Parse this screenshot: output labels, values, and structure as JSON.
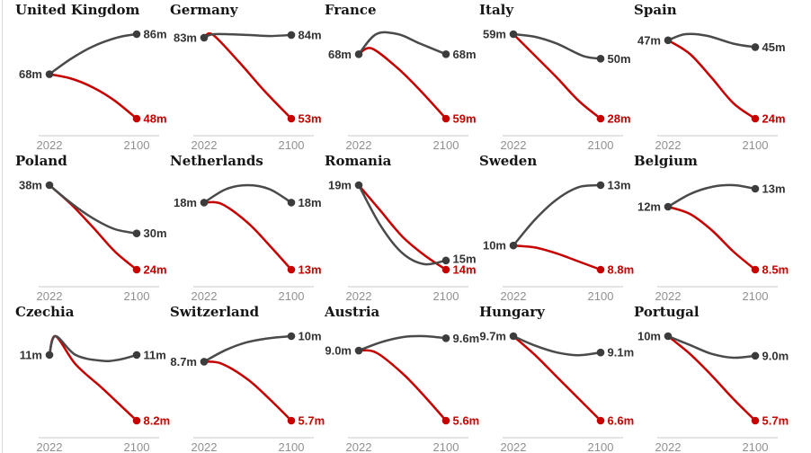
{
  "page": {
    "background": "#ffffff",
    "left_border_color": "#d9d9d9"
  },
  "chart_data": {
    "type": "line",
    "title": "",
    "x_ticks": [
      "2022",
      "2100"
    ],
    "x_range": [
      2022,
      2100
    ],
    "grid": false,
    "legend": "none",
    "unit_suffix": "m",
    "colors": {
      "high_line": "#4a4a4a",
      "low_line": "#c70000",
      "dot_gray": "#3c3c3c",
      "dot_red": "#c70000",
      "label_gray": "#333333",
      "label_red": "#c70000",
      "axis_text": "#909090",
      "axis_line": "#dcdcdc",
      "title_text": "#161616"
    },
    "charts": [
      {
        "country": "United Kingdom",
        "start_label": "68m",
        "high": {
          "end_label": "86m",
          "points": [
            [
              0,
              68
            ],
            [
              0.25,
              75
            ],
            [
              0.5,
              80.5
            ],
            [
              0.78,
              84.5
            ],
            [
              1,
              86
            ]
          ]
        },
        "low": {
          "end_label": "48m",
          "points": [
            [
              0,
              68
            ],
            [
              0.25,
              66
            ],
            [
              0.5,
              62
            ],
            [
              0.75,
              56
            ],
            [
              1,
              48
            ]
          ]
        }
      },
      {
        "country": "Germany",
        "start_label": "83m",
        "high": {
          "end_label": "84m",
          "points": [
            [
              0,
              83
            ],
            [
              0.12,
              84.3
            ],
            [
              0.5,
              84
            ],
            [
              0.75,
              83.6
            ],
            [
              1,
              84
            ]
          ]
        },
        "low": {
          "end_label": "53m",
          "points": [
            [
              0,
              83
            ],
            [
              0.1,
              84.1
            ],
            [
              0.4,
              74
            ],
            [
              0.7,
              63
            ],
            [
              1,
              53
            ]
          ]
        }
      },
      {
        "country": "France",
        "start_label": "68m",
        "high": {
          "end_label": "68m",
          "points": [
            [
              0,
              68
            ],
            [
              0.2,
              70.8
            ],
            [
              0.45,
              70.8
            ],
            [
              0.7,
              69.5
            ],
            [
              1,
              68
            ]
          ]
        },
        "low": {
          "end_label": "59m",
          "points": [
            [
              0,
              68
            ],
            [
              0.15,
              68.8
            ],
            [
              0.45,
              66
            ],
            [
              0.7,
              63
            ],
            [
              1,
              59
            ]
          ]
        }
      },
      {
        "country": "Italy",
        "start_label": "59m",
        "high": {
          "end_label": "50m",
          "points": [
            [
              0,
              59
            ],
            [
              0.25,
              58
            ],
            [
              0.5,
              55.5
            ],
            [
              0.8,
              51
            ],
            [
              1,
              50
            ]
          ]
        },
        "low": {
          "end_label": "28m",
          "points": [
            [
              0,
              59
            ],
            [
              0.25,
              51
            ],
            [
              0.5,
              43
            ],
            [
              0.75,
              34.5
            ],
            [
              1,
              28
            ]
          ]
        }
      },
      {
        "country": "Spain",
        "start_label": "47m",
        "high": {
          "end_label": "45m",
          "points": [
            [
              0,
              47
            ],
            [
              0.2,
              48.8
            ],
            [
              0.45,
              48.3
            ],
            [
              0.75,
              46
            ],
            [
              1,
              45
            ]
          ]
        },
        "low": {
          "end_label": "24m",
          "points": [
            [
              0,
              47
            ],
            [
              0.25,
              43
            ],
            [
              0.5,
              36
            ],
            [
              0.75,
              28.5
            ],
            [
              1,
              24
            ]
          ]
        }
      },
      {
        "country": "Poland",
        "start_label": "38m",
        "high": {
          "end_label": "30m",
          "points": [
            [
              0,
              38
            ],
            [
              0.25,
              35
            ],
            [
              0.5,
              32.5
            ],
            [
              0.75,
              30.7
            ],
            [
              1,
              30
            ]
          ]
        },
        "low": {
          "end_label": "24m",
          "points": [
            [
              0,
              38
            ],
            [
              0.25,
              34.8
            ],
            [
              0.5,
              31
            ],
            [
              0.75,
              27
            ],
            [
              1,
              24
            ]
          ]
        }
      },
      {
        "country": "Netherlands",
        "start_label": "18m",
        "high": {
          "end_label": "18m",
          "points": [
            [
              0,
              18
            ],
            [
              0.25,
              19
            ],
            [
              0.5,
              19.3
            ],
            [
              0.75,
              19
            ],
            [
              1,
              18
            ]
          ]
        },
        "low": {
          "end_label": "13m",
          "points": [
            [
              0,
              18
            ],
            [
              0.2,
              17.9
            ],
            [
              0.5,
              16.5
            ],
            [
              0.75,
              14.8
            ],
            [
              1,
              13
            ]
          ]
        }
      },
      {
        "country": "Romania",
        "start_label": "19m",
        "high": {
          "end_label": "15m",
          "points": [
            [
              0,
              19
            ],
            [
              0.25,
              16.8
            ],
            [
              0.5,
              15.3
            ],
            [
              0.75,
              14.7
            ],
            [
              1,
              14.9
            ]
          ]
        },
        "low": {
          "end_label": "14m",
          "points": [
            [
              0,
              19
            ],
            [
              0.25,
              17.6
            ],
            [
              0.5,
              16.2
            ],
            [
              0.75,
              15.2
            ],
            [
              1,
              14.4
            ]
          ]
        }
      },
      {
        "country": "Sweden",
        "start_label": "10m",
        "high": {
          "end_label": "13m",
          "points": [
            [
              0,
              10
            ],
            [
              0.25,
              11.3
            ],
            [
              0.5,
              12.3
            ],
            [
              0.75,
              12.9
            ],
            [
              1,
              13
            ]
          ]
        },
        "low": {
          "end_label": "8.8m",
          "points": [
            [
              0,
              10
            ],
            [
              0.25,
              9.9
            ],
            [
              0.5,
              9.6
            ],
            [
              0.75,
              9.2
            ],
            [
              1,
              8.8
            ]
          ]
        }
      },
      {
        "country": "Belgium",
        "start_label": "12m",
        "high": {
          "end_label": "13m",
          "points": [
            [
              0,
              12
            ],
            [
              0.25,
              12.7
            ],
            [
              0.5,
              13.1
            ],
            [
              0.75,
              13.2
            ],
            [
              1,
              13
            ]
          ]
        },
        "low": {
          "end_label": "8.5m",
          "points": [
            [
              0,
              12
            ],
            [
              0.25,
              11.6
            ],
            [
              0.5,
              10.7
            ],
            [
              0.75,
              9.5
            ],
            [
              1,
              8.5
            ]
          ]
        }
      },
      {
        "country": "Czechia",
        "start_label": "11m",
        "high": {
          "end_label": "11m",
          "points": [
            [
              0,
              11
            ],
            [
              0.07,
              11.8
            ],
            [
              0.3,
              11
            ],
            [
              0.6,
              10.75
            ],
            [
              0.8,
              10.8
            ],
            [
              1,
              11
            ]
          ]
        },
        "low": {
          "end_label": "8.2m",
          "points": [
            [
              0,
              11
            ],
            [
              0.07,
              11.8
            ],
            [
              0.3,
              10.6
            ],
            [
              0.6,
              9.6
            ],
            [
              0.8,
              8.9
            ],
            [
              1,
              8.2
            ]
          ]
        }
      },
      {
        "country": "Switzerland",
        "start_label": "8.7m",
        "high": {
          "end_label": "10m",
          "points": [
            [
              0,
              8.7
            ],
            [
              0.25,
              9.3
            ],
            [
              0.5,
              9.7
            ],
            [
              0.75,
              9.9
            ],
            [
              1,
              10
            ]
          ]
        },
        "low": {
          "end_label": "5.7m",
          "points": [
            [
              0,
              8.7
            ],
            [
              0.2,
              8.6
            ],
            [
              0.5,
              7.8
            ],
            [
              0.75,
              6.8
            ],
            [
              1,
              5.7
            ]
          ]
        }
      },
      {
        "country": "Austria",
        "start_label": "9.0m",
        "high": {
          "end_label": "9.6m",
          "points": [
            [
              0,
              9
            ],
            [
              0.25,
              9.4
            ],
            [
              0.5,
              9.65
            ],
            [
              0.75,
              9.7
            ],
            [
              1,
              9.6
            ]
          ]
        },
        "low": {
          "end_label": "5.6m",
          "points": [
            [
              0,
              9
            ],
            [
              0.2,
              8.9
            ],
            [
              0.5,
              7.9
            ],
            [
              0.75,
              6.8
            ],
            [
              1,
              5.6
            ]
          ]
        }
      },
      {
        "country": "Hungary",
        "start_label": "9.7m",
        "high": {
          "end_label": "9.1m",
          "points": [
            [
              0,
              9.7
            ],
            [
              0.25,
              9.35
            ],
            [
              0.5,
              9.1
            ],
            [
              0.75,
              9.0
            ],
            [
              1,
              9.1
            ]
          ]
        },
        "low": {
          "end_label": "6.6m",
          "points": [
            [
              0,
              9.7
            ],
            [
              0.25,
              9.0
            ],
            [
              0.5,
              8.2
            ],
            [
              0.75,
              7.4
            ],
            [
              1,
              6.6
            ]
          ]
        }
      },
      {
        "country": "Portugal",
        "start_label": "10m",
        "high": {
          "end_label": "9.0m",
          "points": [
            [
              0,
              10
            ],
            [
              0.25,
              9.55
            ],
            [
              0.5,
              9.1
            ],
            [
              0.75,
              8.9
            ],
            [
              1,
              9.0
            ]
          ]
        },
        "low": {
          "end_label": "5.7m",
          "points": [
            [
              0,
              10
            ],
            [
              0.25,
              9.1
            ],
            [
              0.5,
              8.0
            ],
            [
              0.75,
              6.8
            ],
            [
              1,
              5.7
            ]
          ]
        }
      }
    ]
  }
}
